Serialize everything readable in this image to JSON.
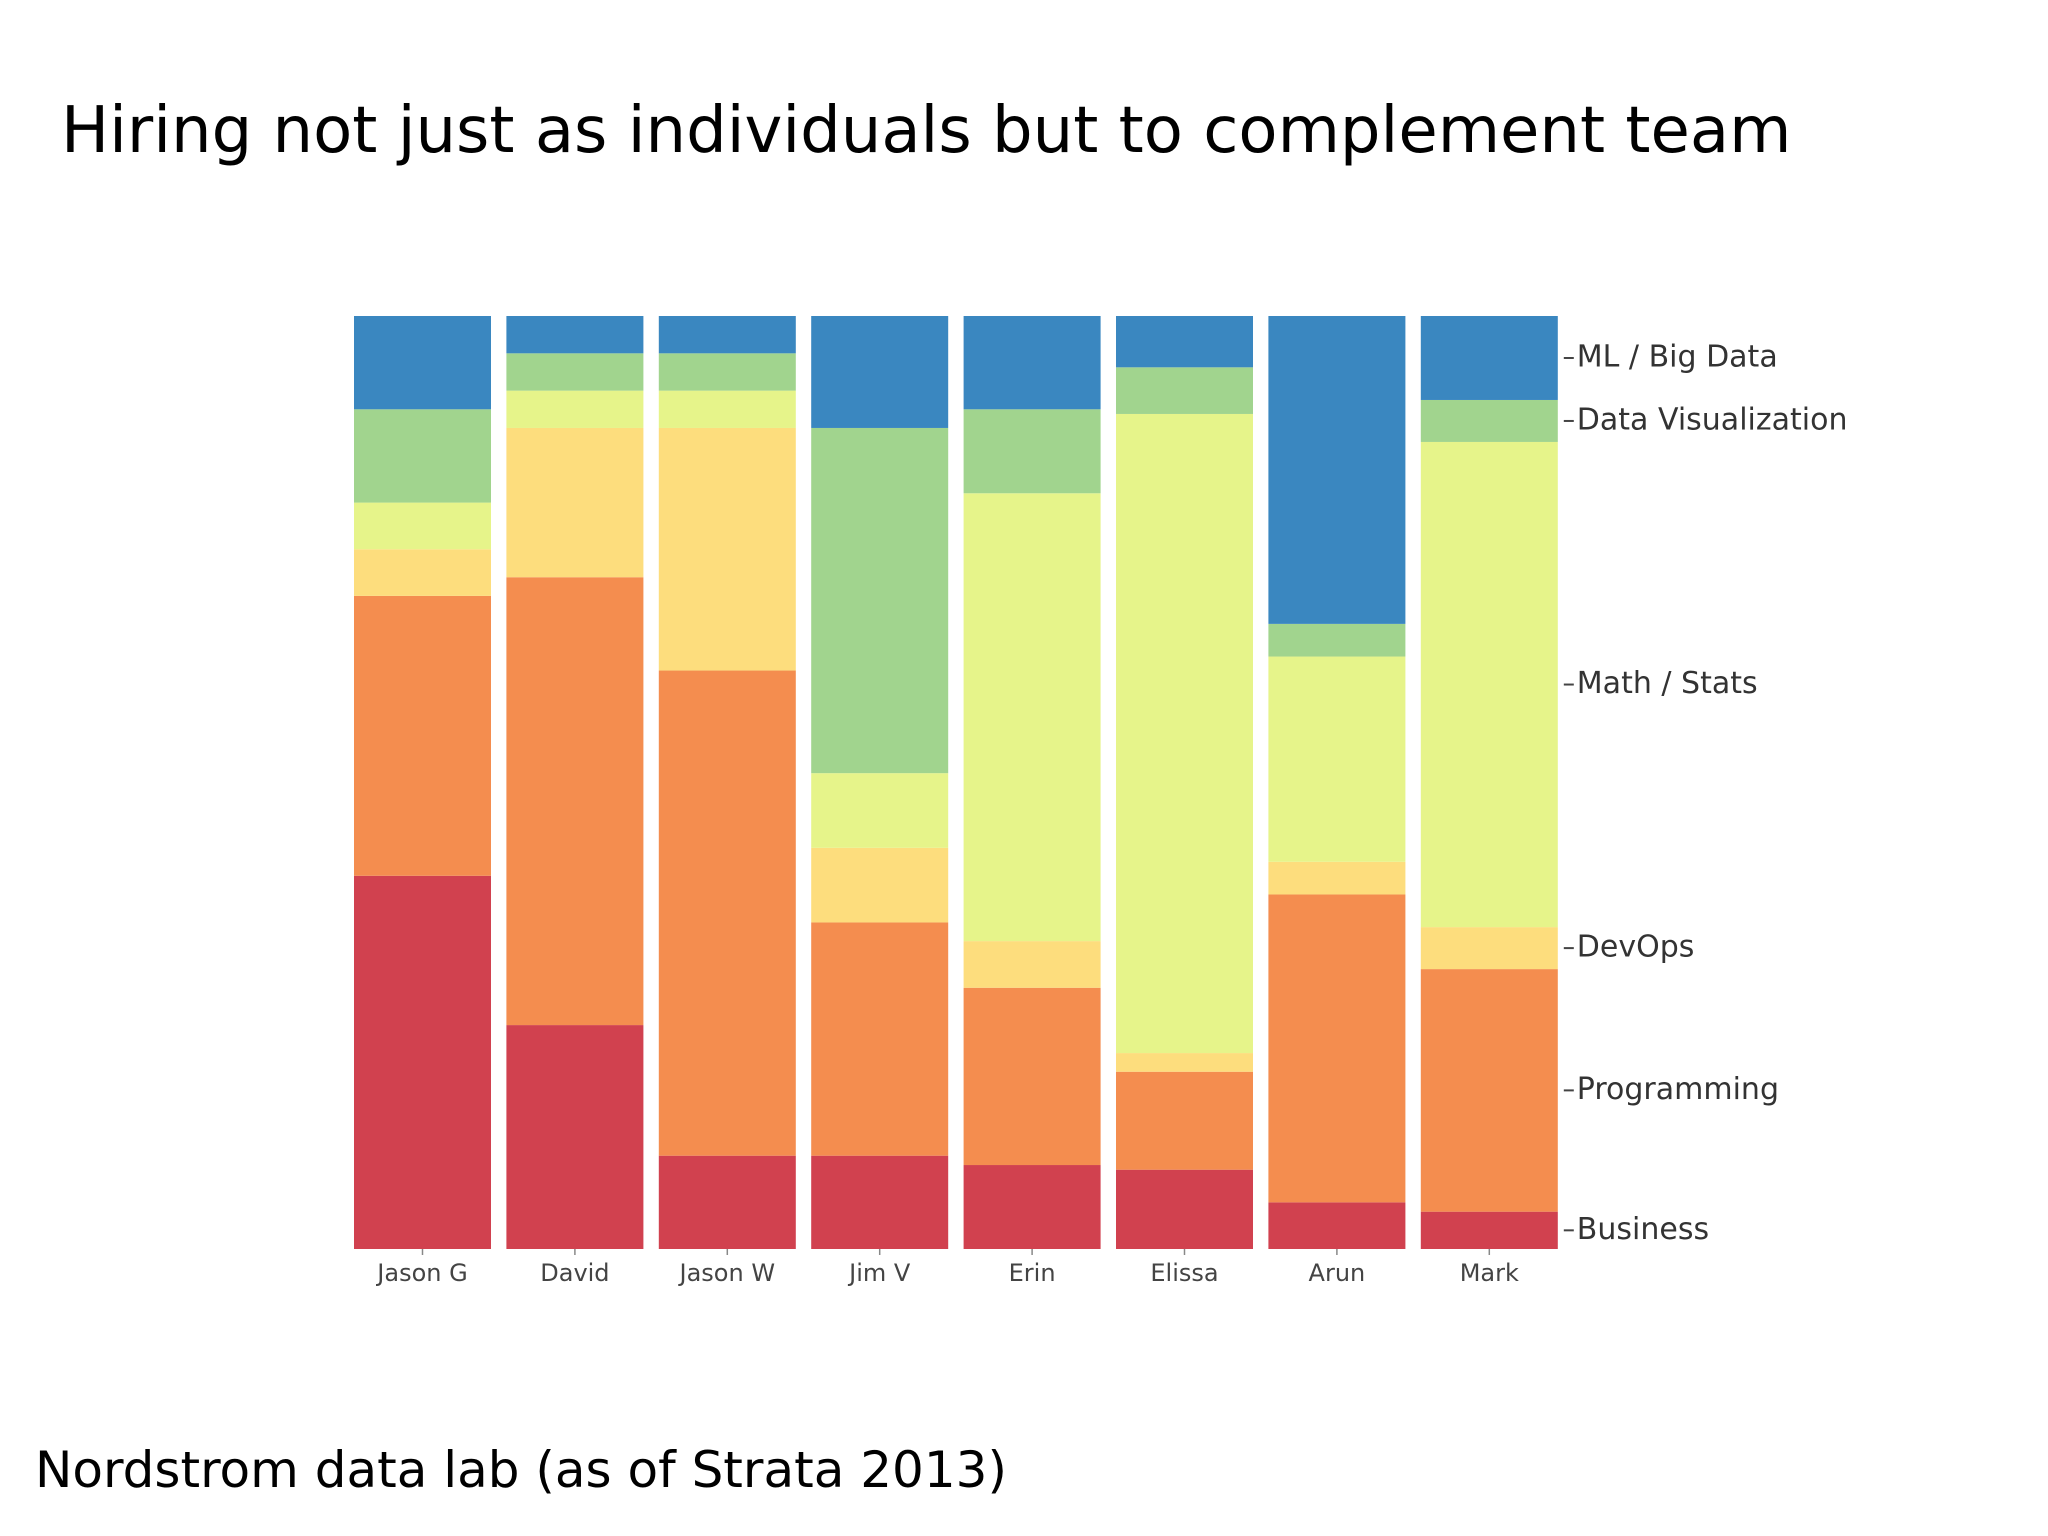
{
  "title": "Hiring not just as individuals but to complement team",
  "footer": "Nordstrom data lab (as of Strata 2013)",
  "chart_data": {
    "type": "stacked_bar",
    "categories": [
      "Jason G",
      "David",
      "Jason W",
      "Jim V",
      "Erin",
      "Elissa",
      "Arun",
      "Mark"
    ],
    "ylim": [
      0,
      100
    ],
    "series": [
      {
        "name": "ML / Big Data",
        "color": "#3a87c0",
        "values": [
          10,
          4,
          4,
          12,
          10,
          5.5,
          33,
          9
        ]
      },
      {
        "name": "Data Visualization",
        "color": "#a1d48e",
        "values": [
          10,
          4,
          4,
          37,
          9,
          5,
          3.5,
          4.5
        ]
      },
      {
        "name": "Math / Stats",
        "color": "#e6f48a",
        "values": [
          5,
          4,
          4,
          8,
          48,
          68.5,
          22,
          52
        ]
      },
      {
        "name": "DevOps",
        "color": "#fddd7d",
        "values": [
          5,
          16,
          26,
          8,
          5,
          2,
          3.5,
          4.5
        ]
      },
      {
        "name": "Programming",
        "color": "#f48d4f",
        "values": [
          30,
          48,
          52,
          25,
          19,
          10.5,
          33,
          26
        ]
      },
      {
        "name": "Business",
        "color": "#d1414f",
        "values": [
          40,
          24,
          10,
          10,
          9,
          8.5,
          5,
          4
        ]
      }
    ]
  }
}
